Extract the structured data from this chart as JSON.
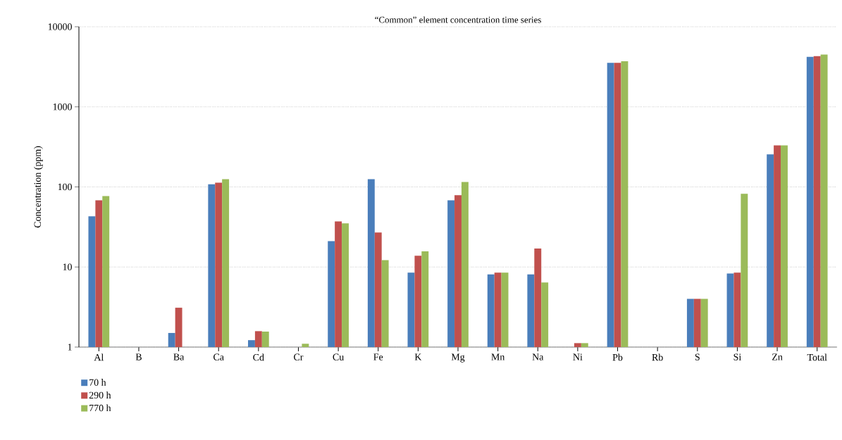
{
  "chart_data": {
    "type": "bar",
    "title": "“Common” element concentration time series",
    "ylabel": "Concentration (ppm)",
    "categories": [
      "Al",
      "B",
      "Ba",
      "Ca",
      "Cd",
      "Cr",
      "Cu",
      "Fe",
      "K",
      "Mg",
      "Mn",
      "Na",
      "Ni",
      "Pb",
      "Rb",
      "S",
      "Si",
      "Zn",
      "Total"
    ],
    "series": [
      {
        "name": "70 h",
        "color": "#4a7ebb",
        "values": [
          43,
          null,
          1.5,
          108,
          1.22,
          null,
          21,
          125,
          8.5,
          68,
          8.1,
          8.1,
          null,
          3550,
          null,
          4,
          8.3,
          255,
          4200
        ]
      },
      {
        "name": "290 h",
        "color": "#c0504d",
        "values": [
          68,
          null,
          3.1,
          113,
          1.58,
          null,
          37,
          27,
          13.8,
          79,
          8.5,
          17,
          1.12,
          3550,
          null,
          4,
          8.5,
          330,
          4300
        ]
      },
      {
        "name": "770 h",
        "color": "#9bbb59",
        "values": [
          77,
          null,
          null,
          125,
          1.56,
          1.1,
          35,
          12.2,
          15.7,
          115,
          8.5,
          6.4,
          1.12,
          3700,
          null,
          4,
          82,
          330,
          4500
        ]
      }
    ],
    "log": "y",
    "ylim": [
      1,
      10000
    ],
    "yticks": [
      1,
      10,
      100,
      1000,
      10000
    ],
    "grid": "y",
    "legend": "bottom left"
  }
}
